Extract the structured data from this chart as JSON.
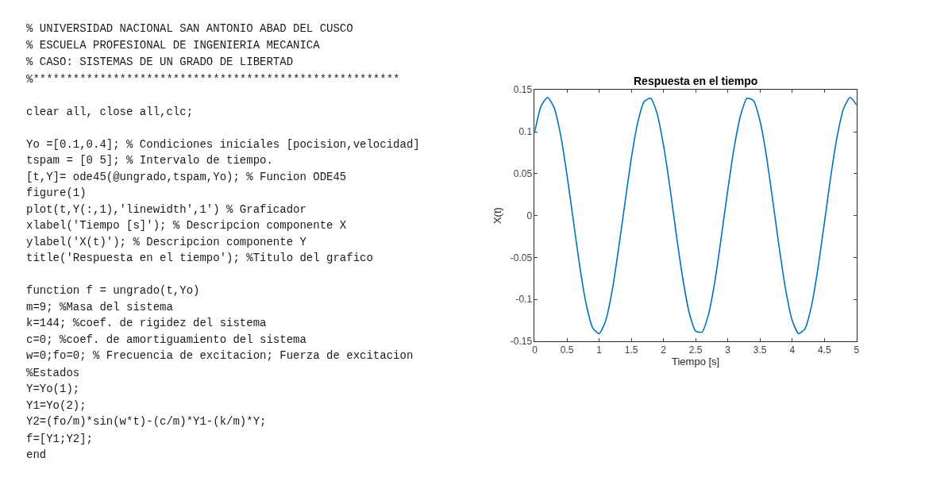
{
  "chart_data": {
    "type": "line",
    "title": "Respuesta en el tiempo",
    "xlabel": "Tiempo [s]",
    "ylabel": "X(t)",
    "x": [
      0,
      0.1,
      0.2,
      0.3,
      0.4,
      0.5,
      0.6,
      0.7,
      0.8,
      0.9,
      1.0,
      1.1,
      1.2,
      1.3,
      1.4,
      1.5,
      1.6,
      1.7,
      1.8,
      1.9,
      2.0,
      2.1,
      2.2,
      2.3,
      2.4,
      2.5,
      2.6,
      2.7,
      2.8,
      2.9,
      3.0,
      3.1,
      3.2,
      3.3,
      3.4,
      3.5,
      3.6,
      3.7,
      3.8,
      3.9,
      4.0,
      4.1,
      4.2,
      4.3,
      4.4,
      4.5,
      4.6,
      4.7,
      4.8,
      4.9,
      5.0
    ],
    "series": [
      {
        "color": "#0072bd",
        "values": [
          0.1,
          0.131,
          0.141,
          0.129,
          0.097,
          0.049,
          -0.006,
          -0.061,
          -0.106,
          -0.134,
          -0.141,
          -0.126,
          -0.091,
          -0.041,
          0.014,
          0.068,
          0.111,
          0.136,
          0.14,
          0.122,
          0.084,
          0.034,
          -0.023,
          -0.075,
          -0.116,
          -0.138,
          -0.139,
          -0.118,
          -0.078,
          -0.025,
          0.031,
          0.082,
          0.12,
          0.14,
          0.137,
          0.113,
          0.071,
          0.017,
          -0.039,
          -0.089,
          -0.125,
          -0.141,
          -0.135,
          -0.108,
          -0.063,
          -0.009,
          0.047,
          0.095,
          0.128,
          0.141,
          0.132
        ]
      }
    ],
    "xlim": [
      0,
      5
    ],
    "xticks": [
      0,
      0.5,
      1,
      1.5,
      2,
      2.5,
      3,
      3.5,
      4,
      4.5,
      5
    ],
    "ylim": [
      -0.15,
      0.15
    ],
    "yticks": [
      -0.15,
      -0.1,
      -0.05,
      0,
      0.05,
      0.1,
      0.15
    ],
    "marker": "none",
    "line_style": "solid",
    "annotations": [
      "% UNIVERSIDAD NACIONAL SAN ANTONIO ABAD DEL CUSCO",
      "% ESCUELA PROFESIONAL DE INGENIERIA MECANICA",
      "% CASO: SISTEMAS DE UN GRADO DE LIBERTAD",
      "%*******************************************************",
      "clear all, close all,clc;",
      "Yo =[0.1,0.4]; % Condiciones iniciales [pocision,velocidad]",
      "tspam = [0 5]; % Intervalo de tiempo.",
      "[t,Y]= ode45(@ungrado,tspam,Yo); % Funcion ODE45",
      "figure(1)",
      "plot(t,Y(:,1),'linewidth',1') % Graficador",
      "xlabel('Tiempo [s]'); % Descripcion componente X",
      "ylabel('X(t)'); % Descripcion componente Y",
      "title('Respuesta en el tiempo'); %Titulo del grafico",
      "function f = ungrado(t,Yo)",
      "m=9; %Masa del sistema",
      "k=144; %coef. de rigidez del sistema",
      "c=0; %coef. de amortiguamiento del sistema",
      "w=0;fo=0; % Frecuencia de excitacion; Fuerza de excitacion",
      "%Estados",
      "Y=Yo(1);",
      "Y1=Yo(2);",
      "Y2=(fo/m)*sin(w*t)-(c/m)*Y1-(k/m)*Y;",
      "f=[Y1;Y2];",
      "end"
    ]
  }
}
